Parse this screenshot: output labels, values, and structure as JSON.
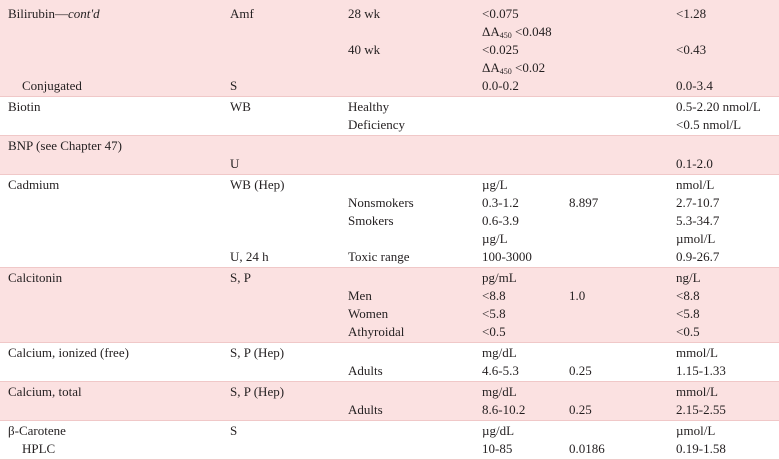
{
  "table": {
    "groups": [
      {
        "shade": "pink",
        "lines": [
          [
            {
              "text": "Bilirubin—",
              "italic": "cont'd"
            },
            "Amf",
            "28 wk",
            "<0.075",
            "",
            "<1.28"
          ],
          [
            "",
            "",
            "",
            {
              "main": "ΔA",
              "sub": "450",
              "rest": " <0.048"
            },
            "",
            ""
          ],
          [
            "",
            "",
            "40 wk",
            "<0.025",
            "",
            "<0.43"
          ],
          [
            "",
            "",
            "",
            {
              "main": "ΔA",
              "sub": "450",
              "rest": " <0.02"
            },
            "",
            ""
          ],
          [
            {
              "text": "Conjugated",
              "indent": true
            },
            "S",
            "",
            "0.0-0.2",
            "",
            "0.0-3.4"
          ]
        ]
      },
      {
        "shade": "white",
        "lines": [
          [
            "Biotin",
            "WB",
            "Healthy",
            "",
            "",
            "0.5-2.20 nmol/L"
          ],
          [
            "",
            "",
            "Deficiency",
            "",
            "",
            "<0.5 nmol/L"
          ]
        ]
      },
      {
        "shade": "pink",
        "lines": [
          [
            "BNP (see Chapter 47)",
            "",
            "",
            "",
            "",
            ""
          ],
          [
            "",
            "U",
            "",
            "",
            "",
            "0.1-2.0"
          ]
        ]
      },
      {
        "shade": "white",
        "lines": [
          [
            "Cadmium",
            "WB (Hep)",
            "",
            "µg/L",
            "",
            "nmol/L"
          ],
          [
            "",
            "",
            "Nonsmokers",
            "0.3-1.2",
            "8.897",
            "2.7-10.7"
          ],
          [
            "",
            "",
            "Smokers",
            "0.6-3.9",
            "",
            "5.3-34.7"
          ],
          [
            "",
            "",
            "",
            "µg/L",
            "",
            "µmol/L"
          ],
          [
            "",
            "U, 24 h",
            "Toxic range",
            "100-3000",
            "",
            "0.9-26.7"
          ]
        ]
      },
      {
        "shade": "pink",
        "lines": [
          [
            "Calcitonin",
            "S, P",
            "",
            "pg/mL",
            "",
            "ng/L"
          ],
          [
            "",
            "",
            "Men",
            "<8.8",
            "1.0",
            "<8.8"
          ],
          [
            "",
            "",
            "Women",
            "<5.8",
            "",
            "<5.8"
          ],
          [
            "",
            "",
            "Athyroidal",
            "<0.5",
            "",
            "<0.5"
          ]
        ]
      },
      {
        "shade": "white",
        "lines": [
          [
            "Calcium, ionized (free)",
            "S, P (Hep)",
            "",
            "mg/dL",
            "",
            "mmol/L"
          ],
          [
            "",
            "",
            "Adults",
            "4.6-5.3",
            "0.25",
            "1.15-1.33"
          ]
        ]
      },
      {
        "shade": "pink",
        "lines": [
          [
            "Calcium, total",
            "S, P (Hep)",
            "",
            "mg/dL",
            "",
            "mmol/L"
          ],
          [
            "",
            "",
            "Adults",
            "8.6-10.2",
            "0.25",
            "2.15-2.55"
          ]
        ]
      },
      {
        "shade": "white",
        "lines": [
          [
            "β-Carotene",
            "S",
            "",
            "µg/dL",
            "",
            "µmol/L"
          ],
          [
            {
              "text": "HPLC",
              "indent": true
            },
            "",
            "",
            "10-85",
            "0.0186",
            "0.19-1.58"
          ]
        ]
      }
    ]
  }
}
